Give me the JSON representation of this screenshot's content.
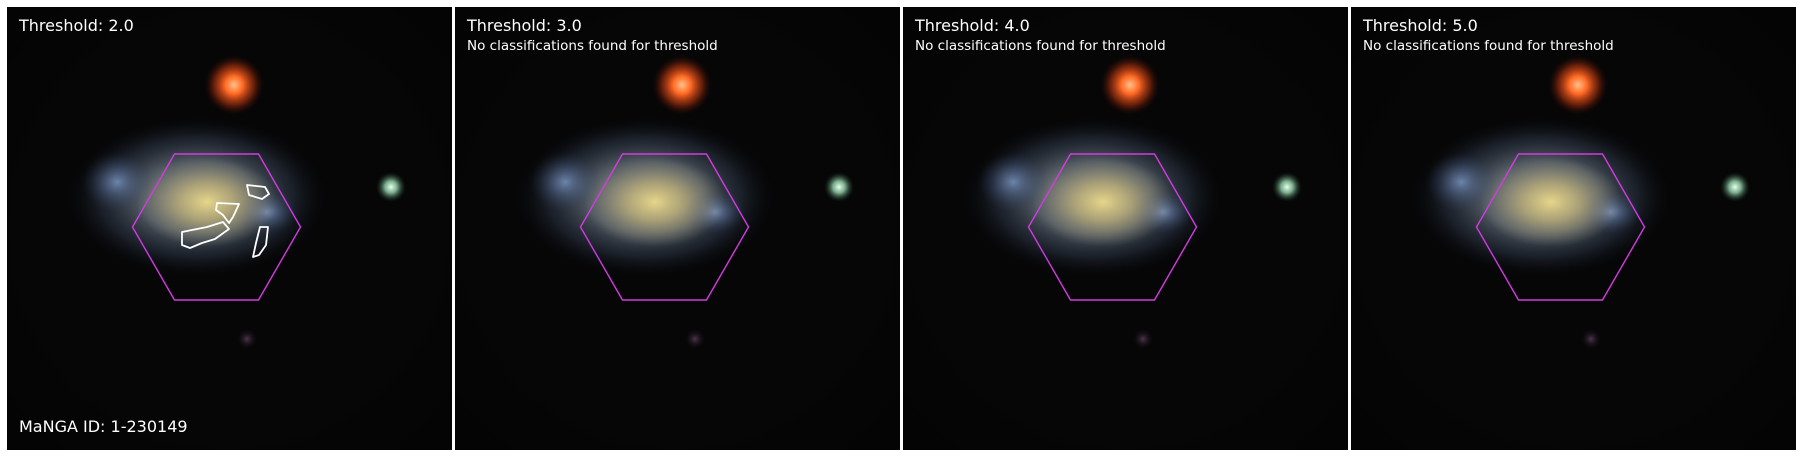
{
  "panels": [
    {
      "title": "Threshold: 2.0",
      "subtitle": ""
    },
    {
      "title": "Threshold: 3.0",
      "subtitle": "No classifications found for threshold"
    },
    {
      "title": "Threshold: 4.0",
      "subtitle": "No classifications found for threshold"
    },
    {
      "title": "Threshold: 5.0",
      "subtitle": "No classifications found for threshold"
    }
  ],
  "manga_id": "MaNGA ID: 1-230149",
  "colors": {
    "background": "#050505",
    "ifu_hexagon": "#d23be0",
    "contour": "#ffffff",
    "red_star": "#ff5a1f",
    "green_star": "#a8e6c0"
  },
  "icons": {
    "galaxy": "galaxy-image",
    "hexagon": "ifu-hexagon-outline",
    "contour": "classification-contour"
  }
}
